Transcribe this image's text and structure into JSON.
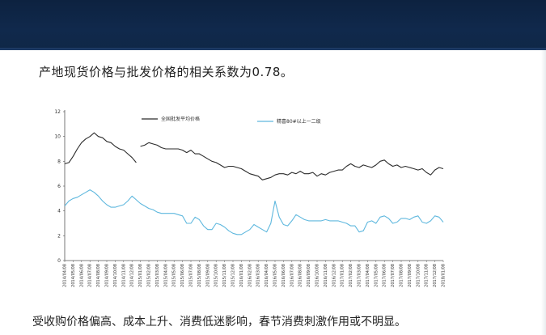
{
  "slide": {
    "headline": "产地现货价格与批发价格的相关系数为0.78。",
    "caption": "受收购价格偏高、成本上升、消费低迷影响，春节消费刺激作用或不明显。"
  },
  "colors": {
    "header": "#10294c",
    "series_wholesale": "#2b2b2b",
    "series_origin": "#5fb8de",
    "axis": "#555555"
  },
  "chart_data": {
    "type": "line",
    "ylim": [
      0,
      12
    ],
    "yticks": [
      0,
      2,
      4,
      6,
      8,
      10,
      12
    ],
    "legend_placement": "top",
    "x_tick_labels": [
      "2014/04/08",
      "2014/05/08",
      "2014/06/08",
      "2014/07/08",
      "2014/08/08",
      "2014/09/08",
      "2014/10/08",
      "2014/11/08",
      "2014/12/08",
      "2015/01/08",
      "2015/02/08",
      "2015/03/08",
      "2015/04/08",
      "2015/05/08",
      "2015/06/08",
      "2015/07/08",
      "2015/08/08",
      "2015/09/08",
      "2015/10/08",
      "2015/11/08",
      "2015/12/08",
      "2016/01/08",
      "2016/02/08",
      "2016/03/08",
      "2016/04/08",
      "2016/05/08",
      "2016/06/08",
      "2016/07/08",
      "2016/08/08",
      "2016/09/08",
      "2016/10/08",
      "2016/11/08",
      "2016/12/08",
      "2017/01/08",
      "2017/02/08",
      "2017/03/08",
      "2017/04/08",
      "2017/05/08",
      "2017/06/08",
      "2017/07/08",
      "2017/08/08",
      "2017/09/08",
      "2017/10/08",
      "2017/11/08",
      "2017/12/08",
      "2018/01/08"
    ],
    "series": [
      {
        "name": "全国批发平均价格",
        "color": "#2b2b2b",
        "segments": [
          {
            "x": [
              "2014/04/08",
              "2014/04/23",
              "2014/05/08",
              "2014/05/23",
              "2014/06/08",
              "2014/06/23",
              "2014/07/08",
              "2014/07/23",
              "2014/08/08",
              "2014/08/23",
              "2014/09/08",
              "2014/09/23",
              "2014/10/08",
              "2014/10/23",
              "2014/11/08",
              "2014/11/23",
              "2014/12/08",
              "2014/12/23"
            ],
            "y": [
              7.8,
              7.9,
              8.4,
              9.0,
              9.5,
              9.8,
              10.0,
              10.3,
              10.0,
              9.9,
              9.6,
              9.5,
              9.2,
              9.0,
              8.9,
              8.6,
              8.3,
              7.9
            ]
          },
          {
            "x": [
              "2015/01/08",
              "2015/01/23",
              "2015/02/08",
              "2015/02/23",
              "2015/03/08",
              "2015/03/23",
              "2015/04/08",
              "2015/04/23",
              "2015/05/08",
              "2015/05/23",
              "2015/06/08",
              "2015/06/23",
              "2015/07/08",
              "2015/07/23",
              "2015/08/08",
              "2015/08/23",
              "2015/09/08",
              "2015/09/23",
              "2015/10/08",
              "2015/10/23",
              "2015/11/08",
              "2015/11/23",
              "2015/12/08",
              "2015/12/23",
              "2016/01/08",
              "2016/01/23",
              "2016/02/08",
              "2016/02/23",
              "2016/03/08",
              "2016/03/23",
              "2016/04/08",
              "2016/04/23",
              "2016/05/08",
              "2016/05/23",
              "2016/06/08",
              "2016/06/23",
              "2016/07/08",
              "2016/07/23",
              "2016/08/08",
              "2016/08/23",
              "2016/09/08",
              "2016/09/23",
              "2016/10/08",
              "2016/10/23",
              "2016/11/08",
              "2016/11/23",
              "2016/12/08",
              "2016/12/23",
              "2017/01/08",
              "2017/01/23",
              "2017/02/08",
              "2017/02/23",
              "2017/03/08",
              "2017/03/23",
              "2017/04/08",
              "2017/04/23",
              "2017/05/08",
              "2017/05/23",
              "2017/06/08",
              "2017/06/23",
              "2017/07/08",
              "2017/07/23",
              "2017/08/08",
              "2017/08/23",
              "2017/09/08",
              "2017/09/23",
              "2017/10/08",
              "2017/10/23",
              "2017/11/08",
              "2017/11/23",
              "2017/12/08",
              "2017/12/23",
              "2018/01/08"
            ],
            "y": [
              9.2,
              9.3,
              9.5,
              9.4,
              9.3,
              9.1,
              9.0,
              9.0,
              9.0,
              9.0,
              8.9,
              8.7,
              8.9,
              8.6,
              8.6,
              8.4,
              8.2,
              8.0,
              7.9,
              7.7,
              7.5,
              7.6,
              7.6,
              7.5,
              7.4,
              7.2,
              7.0,
              6.9,
              6.8,
              6.5,
              6.6,
              6.7,
              6.9,
              7.0,
              7.0,
              6.9,
              7.1,
              7.0,
              7.2,
              7.0,
              7.0,
              7.1,
              6.8,
              7.0,
              6.9,
              7.1,
              7.2,
              7.3,
              7.3,
              7.6,
              7.8,
              7.6,
              7.5,
              7.7,
              7.6,
              7.5,
              7.7,
              8.0,
              8.1,
              7.8,
              7.6,
              7.7,
              7.5,
              7.6,
              7.5,
              7.4,
              7.3,
              7.4,
              7.1,
              6.9,
              7.3,
              7.5,
              7.4
            ]
          }
        ]
      },
      {
        "name": "精喜80#以上一二级",
        "color": "#5fb8de",
        "segments": [
          {
            "x": [
              "2014/04/08",
              "2014/04/23",
              "2014/05/08",
              "2014/05/23",
              "2014/06/08",
              "2014/06/23",
              "2014/07/08",
              "2014/07/23",
              "2014/08/08",
              "2014/08/23",
              "2014/09/08",
              "2014/09/23",
              "2014/10/08",
              "2014/10/23",
              "2014/11/08",
              "2014/11/23",
              "2014/12/08",
              "2014/12/23",
              "2015/01/08",
              "2015/01/23",
              "2015/02/08",
              "2015/02/23",
              "2015/03/08",
              "2015/03/23",
              "2015/04/08",
              "2015/04/23",
              "2015/05/08",
              "2015/05/23",
              "2015/06/08",
              "2015/06/23",
              "2015/07/08",
              "2015/07/23",
              "2015/08/08",
              "2015/08/23",
              "2015/09/08",
              "2015/09/23",
              "2015/10/08",
              "2015/10/23",
              "2015/11/08",
              "2015/11/23",
              "2015/12/08",
              "2015/12/23",
              "2016/01/08",
              "2016/01/23",
              "2016/02/08",
              "2016/02/23",
              "2016/03/08",
              "2016/03/23",
              "2016/04/08",
              "2016/04/23",
              "2016/05/08",
              "2016/05/23",
              "2016/06/08",
              "2016/06/23",
              "2016/07/08",
              "2016/07/23",
              "2016/08/08",
              "2016/08/23",
              "2016/09/08",
              "2016/09/23",
              "2016/10/08",
              "2016/10/23",
              "2016/11/08",
              "2016/11/23",
              "2016/12/08",
              "2016/12/23",
              "2017/01/08",
              "2017/01/23",
              "2017/02/08",
              "2017/02/23",
              "2017/03/08",
              "2017/03/23",
              "2017/04/08",
              "2017/04/23",
              "2017/05/08",
              "2017/05/23",
              "2017/06/08",
              "2017/06/23",
              "2017/07/08",
              "2017/07/23",
              "2017/08/08",
              "2017/08/23",
              "2017/09/08",
              "2017/09/23",
              "2017/10/08",
              "2017/10/23",
              "2017/11/08",
              "2017/11/23",
              "2017/12/08",
              "2017/12/23",
              "2018/01/08"
            ],
            "y": [
              4.4,
              4.8,
              5.0,
              5.1,
              5.3,
              5.5,
              5.7,
              5.5,
              5.2,
              4.8,
              4.5,
              4.3,
              4.3,
              4.4,
              4.5,
              4.8,
              5.2,
              4.9,
              4.6,
              4.4,
              4.2,
              4.1,
              3.9,
              3.8,
              3.8,
              3.8,
              3.8,
              3.7,
              3.6,
              3.0,
              3.0,
              3.5,
              3.3,
              2.8,
              2.5,
              2.5,
              3.0,
              2.9,
              2.7,
              2.4,
              2.2,
              2.1,
              2.1,
              2.3,
              2.5,
              2.9,
              2.7,
              2.5,
              2.3,
              3.0,
              4.8,
              3.5,
              2.9,
              2.8,
              3.2,
              3.7,
              3.5,
              3.3,
              3.2,
              3.2,
              3.2,
              3.2,
              3.3,
              3.2,
              3.2,
              3.2,
              3.1,
              3.0,
              2.8,
              2.8,
              2.3,
              2.4,
              3.1,
              3.2,
              3.0,
              3.5,
              3.6,
              3.4,
              3.0,
              3.1,
              3.4,
              3.4,
              3.3,
              3.5,
              3.6,
              3.1,
              3.0,
              3.2,
              3.6,
              3.5,
              3.1
            ]
          }
        ]
      }
    ]
  }
}
